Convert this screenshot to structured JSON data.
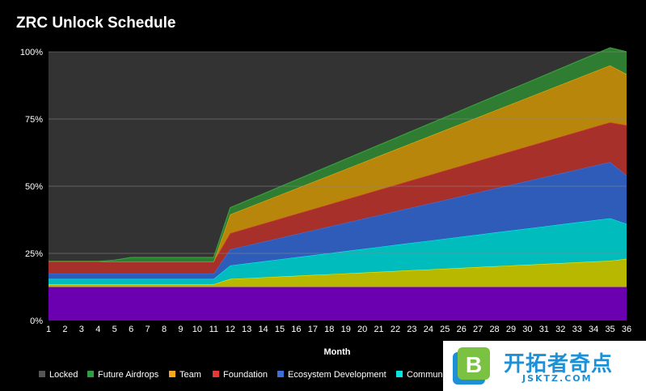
{
  "chart_data": {
    "type": "area",
    "stacked": true,
    "title": "ZRC Unlock Schedule",
    "xlabel": "Month",
    "ylabel": "",
    "x": [
      1,
      2,
      3,
      4,
      5,
      6,
      7,
      8,
      9,
      10,
      11,
      12,
      13,
      14,
      15,
      16,
      17,
      18,
      19,
      20,
      21,
      22,
      23,
      24,
      25,
      26,
      27,
      28,
      29,
      30,
      31,
      32,
      33,
      34,
      35,
      36
    ],
    "y_ticks": [
      "0%",
      "25%",
      "50%",
      "75%",
      "100%"
    ],
    "ylim": [
      0,
      100
    ],
    "grid": true,
    "legend_position": "bottom",
    "series": [
      {
        "name": "Ecosystem Development",
        "color": "#6a00b0",
        "role": "base",
        "values": [
          12.5,
          12.5,
          12.5,
          12.5,
          12.5,
          12.5,
          12.5,
          12.5,
          12.5,
          12.5,
          12.5,
          12.5,
          12.5,
          12.5,
          12.5,
          12.5,
          12.5,
          12.5,
          12.5,
          12.5,
          12.5,
          12.5,
          12.5,
          12.5,
          12.5,
          12.5,
          12.5,
          12.5,
          12.5,
          12.5,
          12.5,
          12.5,
          12.5,
          12.5,
          12.5,
          12.5
        ]
      },
      {
        "name": "Community",
        "color": "#b8b800",
        "values": [
          1.0,
          1.0,
          1.0,
          1.0,
          1.0,
          1.0,
          1.0,
          1.0,
          1.0,
          1.0,
          1.0,
          3.0,
          3.29,
          3.59,
          3.88,
          4.18,
          4.47,
          4.76,
          5.06,
          5.35,
          5.65,
          5.94,
          6.24,
          6.53,
          6.82,
          7.12,
          7.41,
          7.71,
          8.0,
          8.29,
          8.59,
          8.88,
          9.18,
          9.47,
          9.76,
          10.5
        ]
      },
      {
        "name": "Community",
        "color": "#00bcbc",
        "values": [
          2.0,
          2.0,
          2.0,
          2.0,
          2.0,
          2.0,
          2.0,
          2.0,
          2.0,
          2.0,
          2.0,
          5.0,
          5.47,
          5.94,
          6.41,
          6.88,
          7.35,
          7.82,
          8.29,
          8.76,
          9.24,
          9.71,
          10.18,
          10.65,
          11.12,
          11.59,
          12.06,
          12.53,
          13.0,
          13.47,
          13.94,
          14.41,
          14.88,
          15.35,
          15.82,
          13.0
        ]
      },
      {
        "name": "Ecosystem Development",
        "color": "#2e5cb8",
        "values": [
          2.0,
          2.0,
          2.0,
          2.0,
          2.0,
          2.0,
          2.0,
          2.0,
          2.0,
          2.0,
          2.0,
          6.0,
          6.65,
          7.29,
          7.94,
          8.59,
          9.24,
          9.88,
          10.53,
          11.18,
          11.82,
          12.47,
          13.12,
          13.76,
          14.41,
          15.06,
          15.71,
          16.35,
          17.0,
          17.65,
          18.29,
          18.94,
          19.59,
          20.24,
          20.88,
          18.0
        ]
      },
      {
        "name": "Foundation",
        "color": "#a8302a",
        "values": [
          4.5,
          4.5,
          4.5,
          4.5,
          4.5,
          4.5,
          4.5,
          4.5,
          4.5,
          4.5,
          4.5,
          6.0,
          6.38,
          6.76,
          7.15,
          7.53,
          7.91,
          8.29,
          8.68,
          9.06,
          9.44,
          9.82,
          10.21,
          10.59,
          10.97,
          11.35,
          11.74,
          12.12,
          12.5,
          12.88,
          13.26,
          13.65,
          14.03,
          14.41,
          14.79,
          18.7
        ]
      },
      {
        "name": "Team",
        "color": "#b8860b",
        "values": [
          0,
          0,
          0,
          0,
          0,
          0,
          0,
          0,
          0,
          0,
          0,
          7.0,
          7.62,
          8.24,
          8.85,
          9.47,
          10.09,
          10.71,
          11.32,
          11.94,
          12.56,
          13.18,
          13.79,
          14.41,
          15.03,
          15.65,
          16.26,
          16.88,
          17.5,
          18.12,
          18.74,
          19.35,
          19.97,
          20.59,
          21.21,
          19.0
        ]
      },
      {
        "name": "Future Airdrops",
        "color": "#2e7d32",
        "values": [
          0,
          0,
          0,
          0,
          0.5,
          1.5,
          1.5,
          1.5,
          1.5,
          1.5,
          1.5,
          2.5,
          2.68,
          2.85,
          3.03,
          3.21,
          3.38,
          3.56,
          3.74,
          3.91,
          4.09,
          4.26,
          4.44,
          4.62,
          4.79,
          4.97,
          5.15,
          5.32,
          5.5,
          5.68,
          5.85,
          6.03,
          6.21,
          6.38,
          6.56,
          8.3
        ]
      }
    ],
    "legend": [
      {
        "label": "Locked",
        "color": "#555555"
      },
      {
        "label": "Future Airdrops",
        "color": "#2e9e3e"
      },
      {
        "label": "Team",
        "color": "#f5a623"
      },
      {
        "label": "Foundation",
        "color": "#e53935"
      },
      {
        "label": "Ecosystem Development",
        "color": "#3b6fd6"
      },
      {
        "label": "Communi",
        "color": "#00e5e5"
      }
    ],
    "locked_color": "#333333"
  },
  "watermark": {
    "logo_letter": "B",
    "text_cn": "开拓者奇点",
    "text_en": "JSKTZ.COM"
  }
}
